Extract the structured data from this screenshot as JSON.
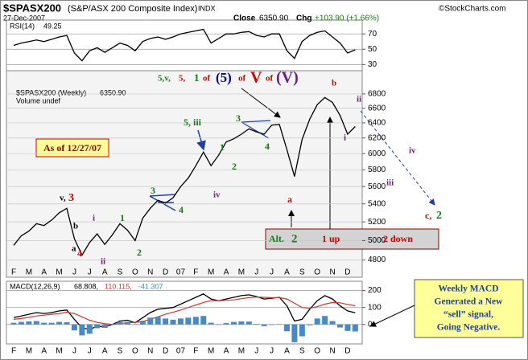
{
  "header": {
    "symbol": "$SPASX200",
    "name": "(S&P/ASX 200 Composite Index)",
    "exchange": "INDX",
    "date": "27-Dec-2007",
    "close_label": "Close",
    "close": "6350.90",
    "chg_label": "Chg",
    "chg": "+103.90 (+1.66%)",
    "source": "©StockCharts.com"
  },
  "chart_data": [
    {
      "type": "line",
      "ylim": [
        22,
        88
      ],
      "yticks": [
        70,
        50,
        30
      ],
      "series": [
        {
          "name": "RSI(14)",
          "color": "#000000",
          "values": [
            55,
            58,
            60,
            62,
            60,
            63,
            66,
            68,
            45,
            35,
            48,
            52,
            46,
            52,
            58,
            55,
            48,
            60,
            64,
            66,
            63,
            66,
            70,
            72,
            74,
            76,
            58,
            64,
            70,
            70,
            72,
            73,
            68,
            66,
            70,
            70,
            48,
            38,
            60,
            68,
            72,
            74,
            66,
            58,
            45,
            49.25
          ]
        }
      ]
    },
    {
      "type": "line",
      "log": true,
      "ylim": [
        4630,
        7140
      ],
      "yticks": [
        4800,
        5000,
        5200,
        5400,
        5600,
        5800,
        6000,
        6200,
        6400,
        6600,
        6800
      ],
      "grid": true,
      "categories": [
        "F",
        null,
        "M",
        null,
        "A",
        null,
        "M",
        null,
        "J",
        null,
        "J",
        null,
        "A",
        null,
        "S",
        null,
        "O",
        null,
        "N",
        null,
        "D",
        null,
        "07",
        null,
        "F",
        null,
        "M",
        null,
        "A",
        null,
        "M",
        null,
        "J",
        null,
        "J",
        null,
        "A",
        null,
        "S",
        null,
        "O",
        null,
        "N",
        null,
        "D",
        null
      ],
      "series": [
        {
          "name": "$SPASX200 (Weekly)",
          "color": "#000000",
          "values": [
            4950,
            5050,
            5100,
            5180,
            5160,
            5220,
            5300,
            5350,
            5020,
            4850,
            4980,
            5070,
            4960,
            5060,
            5180,
            5110,
            5000,
            5240,
            5350,
            5440,
            5410,
            5470,
            5600,
            5700,
            5850,
            6020,
            5850,
            5980,
            6150,
            6190,
            6250,
            6320,
            6280,
            6250,
            6370,
            6380,
            6050,
            5720,
            6180,
            6450,
            6650,
            6750,
            6680,
            6500,
            6250,
            6350.9
          ]
        }
      ],
      "legend_value": "6350.90",
      "volume_note": "Volume undef",
      "title_parts": [
        {
          "text": "5,v,",
          "color": "#1a7a1a"
        },
        {
          "text": "5,",
          "color": "#cc0000"
        },
        {
          "text": "1",
          "color": "#1a7a1a"
        },
        {
          "text": "of",
          "color": "#cc0000"
        },
        {
          "text": "(5)",
          "color": "#000080"
        },
        {
          "text": "of",
          "color": "#cc0000"
        },
        {
          "text": "V",
          "color": "#cc0000"
        },
        {
          "text": "of",
          "color": "#cc0000"
        },
        {
          "text": "(V)",
          "color": "#6b1f7a"
        }
      ],
      "annotations": [
        {
          "text": "v,",
          "color": "#000000"
        },
        {
          "text": "3",
          "color": "#cc0000"
        },
        {
          "text": "b",
          "color": "#000000"
        },
        {
          "text": "a",
          "color": "#000000"
        },
        {
          "text": "i",
          "color": "#6b1f7a"
        },
        {
          "text": "ii",
          "color": "#6b1f7a"
        },
        {
          "text": "4",
          "color": "#cc0000"
        },
        {
          "text": "1",
          "color": "#1a7a1a"
        },
        {
          "text": "2",
          "color": "#1a7a1a"
        },
        {
          "text": "3",
          "color": "#1a7a1a"
        },
        {
          "text": "4",
          "color": "#1a7a1a"
        },
        {
          "text": "5, iii",
          "color": "#1a7a1a"
        },
        {
          "text": "1",
          "color": "#1a7a1a"
        },
        {
          "text": "2",
          "color": "#1a7a1a"
        },
        {
          "text": "iv",
          "color": "#6b1f7a"
        },
        {
          "text": "3",
          "color": "#1a7a1a"
        },
        {
          "text": "4",
          "color": "#1a7a1a"
        },
        {
          "text": "a",
          "color": "#cc0000"
        },
        {
          "text": "b",
          "color": "#cc0000"
        },
        {
          "text": "i",
          "color": "#6b1f7a"
        },
        {
          "text": "ii",
          "color": "#6b1f7a"
        },
        {
          "text": "iv",
          "color": "#6b1f7a"
        },
        {
          "text": "iii",
          "color": "#6b1f7a"
        },
        {
          "text": "c,",
          "color": "#cc0000"
        },
        {
          "text": "2",
          "color": "#1a7a1a"
        }
      ],
      "as_of": "As of 12/27/07",
      "alt_box": [
        {
          "text": "Alt.",
          "color": "#1a7a1a"
        },
        {
          "text": "2",
          "color": "#1a7a1a"
        },
        {
          "text": "1 up",
          "color": "#cc0000"
        },
        {
          "text": "2 down",
          "color": "#cc0000"
        }
      ],
      "callout": [
        "Weekly MACD",
        "Generated a New",
        "“sell” signal,",
        "Going Negative."
      ]
    },
    {
      "type": "line",
      "ylim": [
        -115,
        255
      ],
      "yticks": [
        200,
        100,
        0
      ],
      "categories": [
        "F",
        null,
        "M",
        null,
        "A",
        null,
        "M",
        null,
        "J",
        null,
        "J",
        null,
        "A",
        null,
        "S",
        null,
        "O",
        null,
        "N",
        null,
        "D",
        null,
        "07",
        null,
        "F",
        null,
        "M",
        null,
        "A",
        null,
        "M",
        null,
        "J",
        null,
        "J",
        null,
        "A",
        null,
        "S",
        null,
        "O",
        null,
        "N",
        null,
        "D",
        null
      ],
      "series": [
        {
          "name": "MACD(12,26,9)",
          "color": "#000000",
          "values": [
            40,
            50,
            60,
            70,
            65,
            70,
            80,
            85,
            30,
            -20,
            -30,
            -10,
            -15,
            0,
            20,
            25,
            10,
            40,
            70,
            90,
            95,
            100,
            120,
            140,
            160,
            180,
            150,
            140,
            150,
            160,
            170,
            175,
            165,
            150,
            155,
            160,
            110,
            20,
            30,
            90,
            140,
            170,
            150,
            110,
            80,
            68.808
          ]
        },
        {
          "color": "#e03030",
          "values": [
            30,
            35,
            42,
            50,
            55,
            60,
            65,
            72,
            65,
            45,
            25,
            12,
            5,
            0,
            5,
            10,
            12,
            18,
            30,
            45,
            60,
            72,
            85,
            100,
            115,
            130,
            140,
            140,
            142,
            145,
            152,
            158,
            162,
            160,
            158,
            158,
            150,
            125,
            100,
            95,
            105,
            120,
            130,
            128,
            118,
            110.115
          ]
        },
        {
          "type": "bar",
          "color": "#4a8ac4",
          "values": [
            10,
            15,
            18,
            20,
            10,
            10,
            15,
            13,
            -35,
            -65,
            -55,
            -22,
            -20,
            0,
            15,
            15,
            -2,
            22,
            40,
            45,
            35,
            28,
            35,
            40,
            45,
            50,
            10,
            0,
            8,
            15,
            18,
            17,
            3,
            -10,
            -3,
            2,
            -40,
            -105,
            -70,
            -5,
            35,
            50,
            20,
            -18,
            -38,
            -41.307
          ]
        }
      ],
      "legend_values": [
        "68.808,",
        "110.115,",
        "-41.307"
      ]
    }
  ]
}
